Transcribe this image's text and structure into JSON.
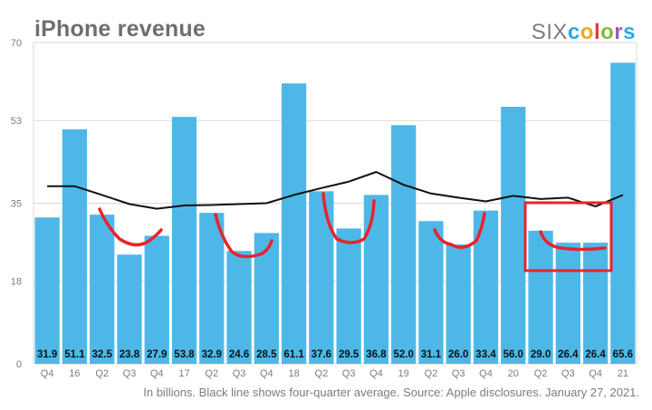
{
  "title": "iPhone revenue",
  "brand": {
    "six": "SIX",
    "colors_letters": [
      "c",
      "o",
      "l",
      "o",
      "r",
      "s"
    ],
    "colors_palette": [
      "#2ea6e0",
      "#f4a623",
      "#e03c3c",
      "#7fba3f",
      "#9b59b6",
      "#2ea6e0"
    ]
  },
  "caption": "In billions. Black line shows four-quarter average. Source: Apple disclosures. January 27, 2021.",
  "chart_data": {
    "type": "bar",
    "categories": [
      "Q4",
      "16",
      "Q2",
      "Q3",
      "Q4",
      "17",
      "Q2",
      "Q3",
      "Q4",
      "18",
      "Q2",
      "Q3",
      "Q4",
      "19",
      "Q2",
      "Q3",
      "Q4",
      "20",
      "Q2",
      "Q3",
      "Q4",
      "21"
    ],
    "values": [
      31.9,
      51.1,
      32.5,
      23.8,
      27.9,
      53.8,
      32.9,
      24.6,
      28.5,
      61.1,
      37.6,
      29.5,
      36.8,
      52.0,
      31.1,
      26.0,
      33.4,
      56.0,
      29.0,
      26.4,
      26.4,
      65.6
    ],
    "value_labels": [
      "31.9",
      "51.1",
      "32.5",
      "23.8",
      "27.9",
      "53.8",
      "32.9",
      "24.6",
      "28.5",
      "61.1",
      "37.6",
      "29.5",
      "36.8",
      "52.0",
      "31.1",
      "26.0",
      "33.4",
      "56.0",
      "29.0",
      "26.4",
      "26.4",
      "65.6"
    ],
    "average_line": [
      38.7,
      38.7,
      36.8,
      34.8,
      33.8,
      34.5,
      34.6,
      34.8,
      35.0,
      36.8,
      38.3,
      39.7,
      41.8,
      39.0,
      37.1,
      36.2,
      35.4,
      36.6,
      35.9,
      36.2,
      34.3,
      36.8
    ],
    "yticks": [
      0,
      18,
      35,
      53,
      70
    ],
    "ytick_labels": [
      "0",
      "18",
      "35",
      "53",
      "70"
    ],
    "ylim": [
      0,
      70
    ],
    "grid": true,
    "bar_color": "#4db8e8",
    "line_color": "#111111",
    "annotation_color": "#e8232a",
    "xlabel": "",
    "ylabel": ""
  }
}
